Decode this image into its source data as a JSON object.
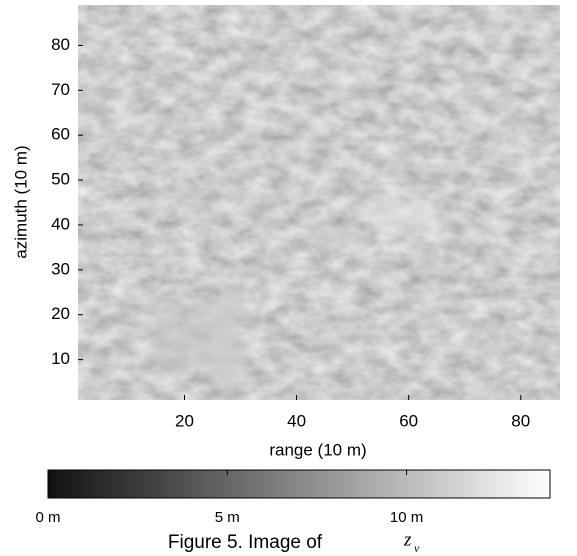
{
  "chart_data": {
    "type": "heatmap",
    "x_label": "range (10 m)",
    "y_label": "azimuth (10 m)",
    "xlim": [
      1,
      87
    ],
    "ylim": [
      1,
      89
    ],
    "xticks": [
      20,
      40,
      60,
      80
    ],
    "yticks": [
      10,
      20,
      30,
      40,
      50,
      60,
      70,
      80
    ],
    "clim": [
      0,
      14
    ],
    "cticks": [
      {
        "value": 0,
        "label": "0 m"
      },
      {
        "value": 5,
        "label": "5 m"
      },
      {
        "value": 10,
        "label": "10 m"
      }
    ],
    "colorbar_colors": [
      "#111111",
      "#ffffff"
    ],
    "caption": "Figure 5.  Image of",
    "caption_symbol": "z",
    "caption_subscript": "v"
  }
}
